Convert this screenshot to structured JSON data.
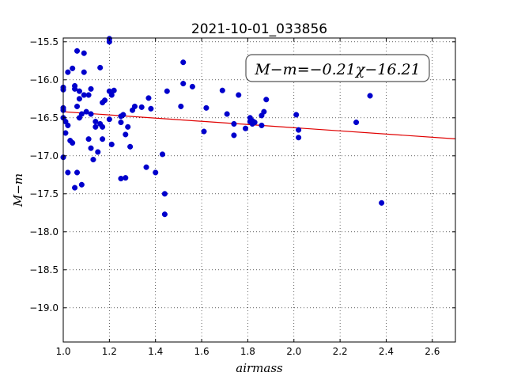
{
  "chart_data": {
    "type": "scatter",
    "title": "2021-10-01_033856",
    "xlabel": "airmass",
    "ylabel": "M−m",
    "xlim": [
      1.0,
      2.7
    ],
    "ylim": [
      -19.45,
      -15.45
    ],
    "y_inverted": true,
    "grid": true,
    "grid_style": "dotted",
    "x_ticks": [
      "1.0",
      "1.2",
      "1.4",
      "1.6",
      "1.8",
      "2.0",
      "2.2",
      "2.4",
      "2.6"
    ],
    "x_tick_values": [
      1.0,
      1.2,
      1.4,
      1.6,
      1.8,
      2.0,
      2.2,
      2.4,
      2.6
    ],
    "y_ticks": [
      "−15.5",
      "−16.0",
      "−16.5",
      "−17.0",
      "−17.5",
      "−18.0",
      "−18.5",
      "−19.0"
    ],
    "y_tick_values": [
      -15.5,
      -16.0,
      -16.5,
      -17.0,
      -17.5,
      -18.0,
      -18.5,
      -19.0
    ],
    "annotation": "M−m=−0.21χ−16.21",
    "annotation_position": "top-right",
    "fit": {
      "slope": -0.21,
      "intercept": -16.21,
      "color": "#e00000"
    },
    "marker_color": "#0000cc",
    "points": [
      [
        1.0,
        -16.13
      ],
      [
        1.0,
        -16.4
      ],
      [
        1.0,
        -16.37
      ],
      [
        1.0,
        -16.1
      ],
      [
        1.0,
        -16.5
      ],
      [
        1.0,
        -17.02
      ],
      [
        1.01,
        -16.7
      ],
      [
        1.01,
        -16.55
      ],
      [
        1.02,
        -15.9
      ],
      [
        1.02,
        -16.6
      ],
      [
        1.02,
        -17.22
      ],
      [
        1.03,
        -16.8
      ],
      [
        1.04,
        -16.83
      ],
      [
        1.04,
        -15.85
      ],
      [
        1.05,
        -16.08
      ],
      [
        1.05,
        -16.12
      ],
      [
        1.05,
        -17.42
      ],
      [
        1.06,
        -16.35
      ],
      [
        1.06,
        -17.22
      ],
      [
        1.06,
        -15.62
      ],
      [
        1.07,
        -16.5
      ],
      [
        1.07,
        -16.15
      ],
      [
        1.07,
        -16.25
      ],
      [
        1.08,
        -16.45
      ],
      [
        1.08,
        -17.38
      ],
      [
        1.09,
        -15.9
      ],
      [
        1.09,
        -15.65
      ],
      [
        1.09,
        -16.2
      ],
      [
        1.1,
        -16.42
      ],
      [
        1.11,
        -16.2
      ],
      [
        1.11,
        -16.78
      ],
      [
        1.12,
        -16.45
      ],
      [
        1.12,
        -16.12
      ],
      [
        1.12,
        -16.9
      ],
      [
        1.13,
        -17.05
      ],
      [
        1.14,
        -16.55
      ],
      [
        1.14,
        -16.62
      ],
      [
        1.15,
        -16.95
      ],
      [
        1.16,
        -15.84
      ],
      [
        1.16,
        -16.58
      ],
      [
        1.17,
        -16.62
      ],
      [
        1.17,
        -16.3
      ],
      [
        1.17,
        -16.78
      ],
      [
        1.18,
        -16.27
      ],
      [
        1.2,
        -15.46
      ],
      [
        1.2,
        -15.5
      ],
      [
        1.2,
        -16.52
      ],
      [
        1.2,
        -16.15
      ],
      [
        1.21,
        -16.2
      ],
      [
        1.21,
        -16.85
      ],
      [
        1.22,
        -16.14
      ],
      [
        1.25,
        -16.56
      ],
      [
        1.25,
        -16.48
      ],
      [
        1.25,
        -17.3
      ],
      [
        1.26,
        -16.46
      ],
      [
        1.27,
        -17.29
      ],
      [
        1.27,
        -16.72
      ],
      [
        1.28,
        -16.62
      ],
      [
        1.29,
        -16.88
      ],
      [
        1.3,
        -16.4
      ],
      [
        1.31,
        -16.35
      ],
      [
        1.34,
        -16.36
      ],
      [
        1.36,
        -17.15
      ],
      [
        1.37,
        -16.24
      ],
      [
        1.38,
        -16.38
      ],
      [
        1.4,
        -17.22
      ],
      [
        1.43,
        -16.98
      ],
      [
        1.44,
        -17.5
      ],
      [
        1.44,
        -17.77
      ],
      [
        1.45,
        -16.15
      ],
      [
        1.51,
        -16.35
      ],
      [
        1.52,
        -15.77
      ],
      [
        1.52,
        -16.05
      ],
      [
        1.56,
        -16.09
      ],
      [
        1.61,
        -16.68
      ],
      [
        1.62,
        -16.37
      ],
      [
        1.69,
        -16.14
      ],
      [
        1.71,
        -16.45
      ],
      [
        1.74,
        -16.58
      ],
      [
        1.74,
        -16.73
      ],
      [
        1.76,
        -16.2
      ],
      [
        1.79,
        -16.64
      ],
      [
        1.81,
        -16.5
      ],
      [
        1.81,
        -16.55
      ],
      [
        1.82,
        -16.54
      ],
      [
        1.82,
        -16.58
      ],
      [
        1.83,
        -16.56
      ],
      [
        1.86,
        -16.6
      ],
      [
        1.86,
        -16.47
      ],
      [
        1.87,
        -16.42
      ],
      [
        1.88,
        -16.26
      ],
      [
        2.01,
        -16.46
      ],
      [
        2.02,
        -16.76
      ],
      [
        2.02,
        -16.66
      ],
      [
        2.27,
        -16.56
      ],
      [
        2.33,
        -16.21
      ],
      [
        2.38,
        -17.62
      ]
    ]
  }
}
